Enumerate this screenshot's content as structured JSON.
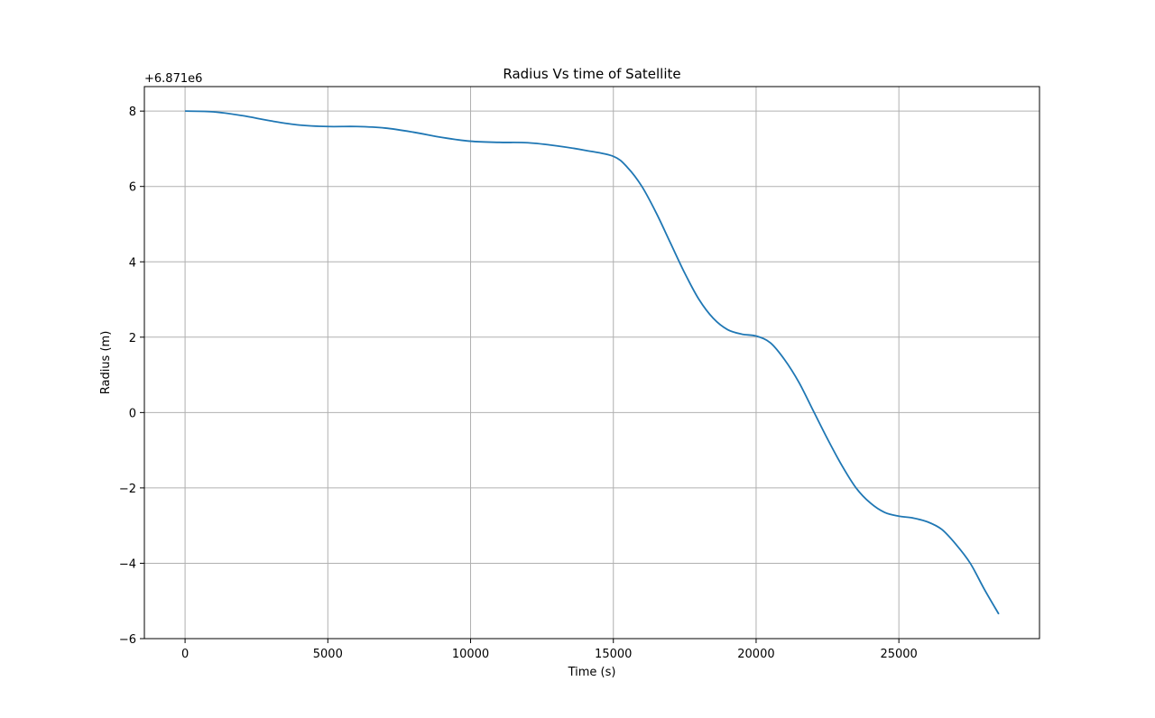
{
  "chart_data": {
    "type": "line",
    "title": "Radius Vs time of Satellite",
    "xlabel": "Time (s)",
    "ylabel": "Radius (m)",
    "y_offset_label": "+6.871e6",
    "xlim": [
      -1425,
      29925
    ],
    "ylim": [
      -6,
      8.65
    ],
    "x_ticks": [
      0,
      5000,
      10000,
      15000,
      20000,
      25000
    ],
    "x_tick_labels": [
      "0",
      "5000",
      "10000",
      "15000",
      "20000",
      "25000"
    ],
    "y_ticks": [
      -6,
      -4,
      -2,
      0,
      2,
      4,
      6,
      8
    ],
    "y_tick_labels": [
      "−6",
      "−4",
      "−2",
      "0",
      "2",
      "4",
      "6",
      "8"
    ],
    "grid": true,
    "series": [
      {
        "color": "#1f77b4",
        "x": [
          0,
          1000,
          2000,
          3000,
          4000,
          5000,
          6000,
          7000,
          8000,
          9000,
          10000,
          11000,
          12000,
          13000,
          14000,
          15000,
          15500,
          16000,
          16500,
          17000,
          17500,
          18000,
          18500,
          19000,
          19500,
          20000,
          20500,
          21000,
          21500,
          22000,
          22500,
          23000,
          23500,
          24000,
          24500,
          25000,
          25500,
          26000,
          26500,
          27000,
          27500,
          28000,
          28500
        ],
        "y": [
          8.0,
          7.98,
          7.88,
          7.74,
          7.63,
          7.59,
          7.59,
          7.55,
          7.44,
          7.3,
          7.2,
          7.17,
          7.16,
          7.08,
          6.96,
          6.8,
          6.5,
          6.0,
          5.3,
          4.5,
          3.7,
          3.0,
          2.5,
          2.2,
          2.08,
          2.03,
          1.85,
          1.4,
          0.8,
          0.05,
          -0.7,
          -1.4,
          -2.0,
          -2.4,
          -2.65,
          -2.75,
          -2.8,
          -2.9,
          -3.1,
          -3.5,
          -4.0,
          -4.7,
          -5.35
        ]
      }
    ]
  }
}
